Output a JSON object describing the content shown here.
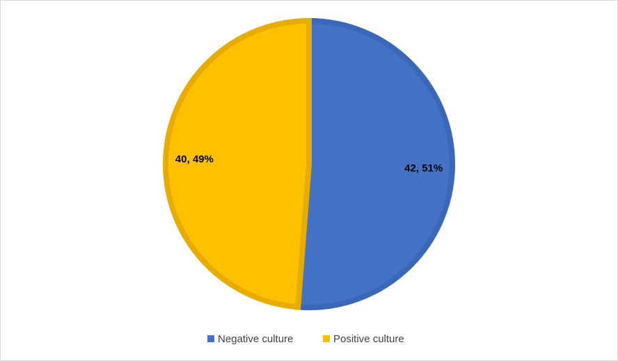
{
  "chart_data": {
    "type": "pie",
    "categories": [
      "Negative culture",
      "Positive culture"
    ],
    "values": [
      42,
      40
    ],
    "value_labels": [
      "42, 51%",
      "40, 49%"
    ],
    "colors": [
      "#4472c4",
      "#ffc000"
    ],
    "border_colors": [
      "#3b67b8",
      "#e6ac00"
    ],
    "legend": "bottom"
  }
}
